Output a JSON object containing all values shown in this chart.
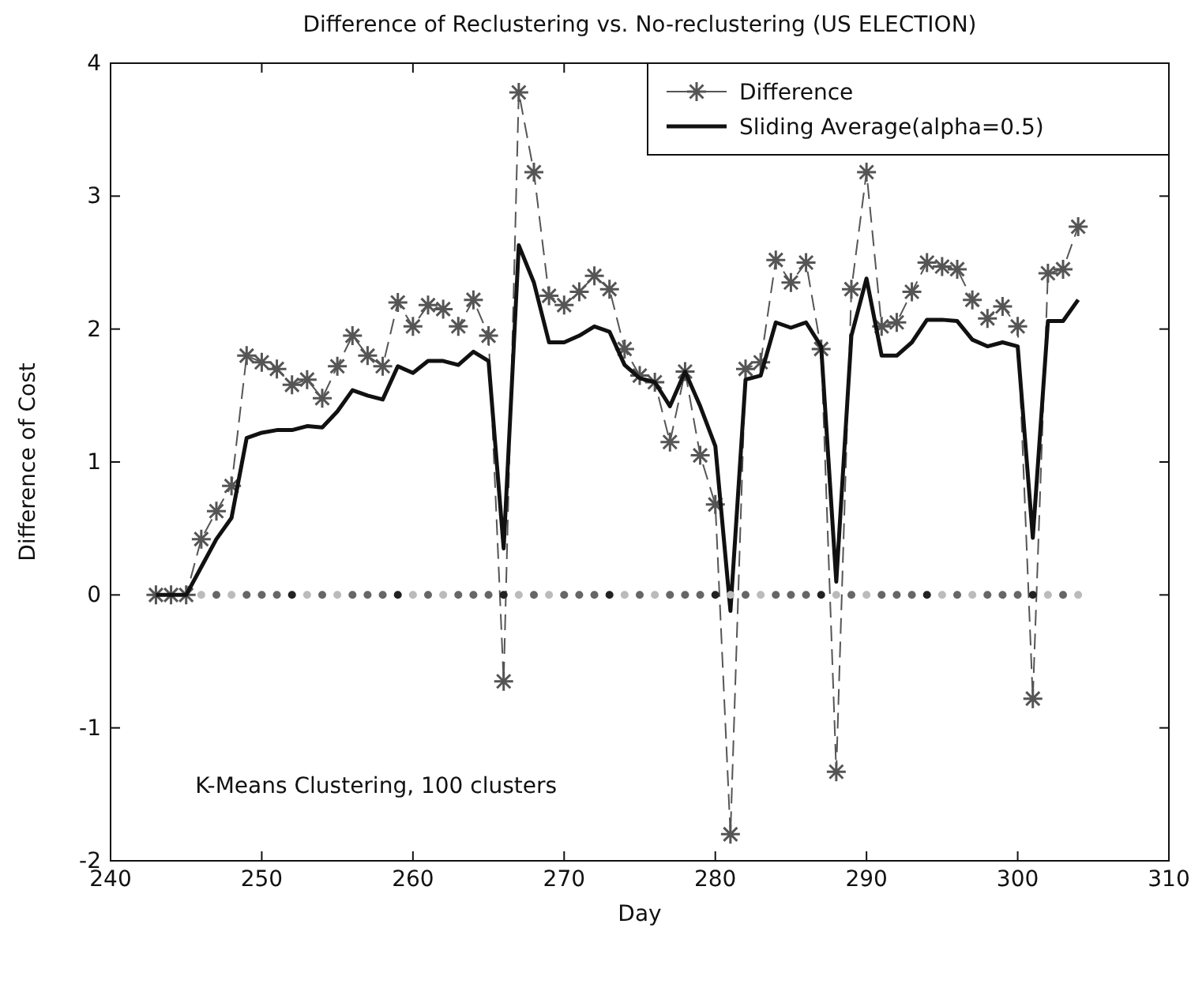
{
  "chart_data": {
    "type": "line",
    "title": "Difference of Reclustering vs. No-reclustering (US ELECTION)",
    "xlabel": "Day",
    "ylabel": "Difference of Cost",
    "x": [
      243,
      244,
      245,
      246,
      247,
      248,
      249,
      250,
      251,
      252,
      253,
      254,
      255,
      256,
      257,
      258,
      259,
      260,
      261,
      262,
      263,
      264,
      265,
      266,
      267,
      268,
      269,
      270,
      271,
      272,
      273,
      274,
      275,
      276,
      277,
      278,
      279,
      280,
      281,
      282,
      283,
      284,
      285,
      286,
      287,
      288,
      289,
      290,
      291,
      292,
      293,
      294,
      295,
      296,
      297,
      298,
      299,
      300,
      301,
      302,
      303,
      304
    ],
    "xlim": [
      240,
      310
    ],
    "xticks": [
      240,
      250,
      260,
      270,
      280,
      290,
      300,
      310
    ],
    "ylim": [
      -2,
      4
    ],
    "yticks": [
      -2,
      -1,
      0,
      1,
      2,
      3,
      4
    ],
    "grid": false,
    "legend": "top right",
    "series": [
      {
        "name": "Difference",
        "color": "#555555",
        "marker": "cross",
        "line_style": "dashed",
        "values": [
          0,
          0,
          0,
          0.42,
          0.63,
          0.82,
          1.8,
          1.75,
          1.7,
          1.58,
          1.62,
          1.48,
          1.72,
          1.95,
          1.8,
          1.72,
          2.2,
          2.02,
          2.18,
          2.15,
          2.02,
          2.22,
          1.95,
          -0.65,
          3.78,
          3.18,
          2.25,
          2.18,
          2.28,
          2.4,
          2.3,
          1.85,
          1.65,
          1.6,
          1.15,
          1.68,
          1.05,
          0.68,
          -1.8,
          1.7,
          1.75,
          2.52,
          2.35,
          2.5,
          1.85,
          -1.33,
          2.3,
          3.18,
          2.02,
          2.05,
          2.28,
          2.5,
          2.47,
          2.45,
          2.22,
          2.08,
          2.17,
          2.02,
          -0.78,
          2.42,
          2.45,
          2.77
        ]
      },
      {
        "name": "Sliding Average(alpha=0.5)",
        "color": "#111111",
        "marker": "none",
        "line_style": "solid",
        "values": [
          0,
          0,
          0,
          0.21,
          0.42,
          0.58,
          1.18,
          1.22,
          1.24,
          1.24,
          1.27,
          1.26,
          1.38,
          1.54,
          1.5,
          1.47,
          1.72,
          1.67,
          1.76,
          1.76,
          1.73,
          1.83,
          1.76,
          0.35,
          2.63,
          2.35,
          1.9,
          1.9,
          1.95,
          2.02,
          1.98,
          1.73,
          1.63,
          1.6,
          1.42,
          1.68,
          1.42,
          1.12,
          -0.12,
          1.62,
          1.65,
          2.05,
          2.01,
          2.05,
          1.87,
          0.1,
          1.95,
          2.38,
          1.8,
          1.8,
          1.9,
          2.07,
          2.07,
          2.06,
          1.92,
          1.87,
          1.9,
          1.87,
          0.43,
          2.06,
          2.06,
          2.22
        ]
      },
      {
        "type": "scatter",
        "marker": "circle",
        "x": [
          246,
          247,
          248,
          249,
          250,
          251,
          252,
          253,
          254,
          255,
          256,
          257,
          258,
          259,
          260,
          261,
          262,
          263,
          264,
          265,
          266,
          267,
          268,
          269,
          270,
          271,
          272,
          273,
          274,
          275,
          276,
          277,
          278,
          279,
          280,
          281,
          282,
          283,
          284,
          285,
          286,
          287,
          288,
          289,
          290,
          291,
          292,
          293,
          294,
          295,
          296,
          297,
          298,
          299,
          300,
          301,
          302,
          303,
          304
        ],
        "values": [
          0,
          0,
          0,
          0,
          0,
          0,
          0,
          0,
          0,
          0,
          0,
          0,
          0,
          0,
          0,
          0,
          0,
          0,
          0,
          0,
          0,
          0,
          0,
          0,
          0,
          0,
          0,
          0,
          0,
          0,
          0,
          0,
          0,
          0,
          0,
          0,
          0,
          0,
          0,
          0,
          0,
          0,
          0,
          0,
          0,
          0,
          0,
          0,
          0,
          0,
          0,
          0,
          0,
          0,
          0,
          0,
          0,
          0,
          0
        ],
        "colors": [
          "#bbbbbb",
          "#666666",
          "#bbbbbb",
          "#666666",
          "#666666",
          "#666666",
          "#222222",
          "#bbbbbb",
          "#666666",
          "#bbbbbb",
          "#666666",
          "#666666",
          "#666666",
          "#222222",
          "#bbbbbb",
          "#666666",
          "#bbbbbb",
          "#666666",
          "#666666",
          "#666666",
          "#222222",
          "#bbbbbb",
          "#666666",
          "#bbbbbb",
          "#666666",
          "#666666",
          "#666666",
          "#222222",
          "#bbbbbb",
          "#666666",
          "#bbbbbb",
          "#666666",
          "#666666",
          "#666666",
          "#222222",
          "#bbbbbb",
          "#666666",
          "#bbbbbb",
          "#666666",
          "#666666",
          "#666666",
          "#222222",
          "#bbbbbb",
          "#666666",
          "#bbbbbb",
          "#666666",
          "#666666",
          "#666666",
          "#222222",
          "#bbbbbb",
          "#666666",
          "#bbbbbb",
          "#666666",
          "#666666",
          "#666666",
          "#222222",
          "#bbbbbb",
          "#666666",
          "#bbbbbb"
        ]
      }
    ],
    "annotations": [
      "K-Means Clustering, 100 clusters"
    ]
  }
}
